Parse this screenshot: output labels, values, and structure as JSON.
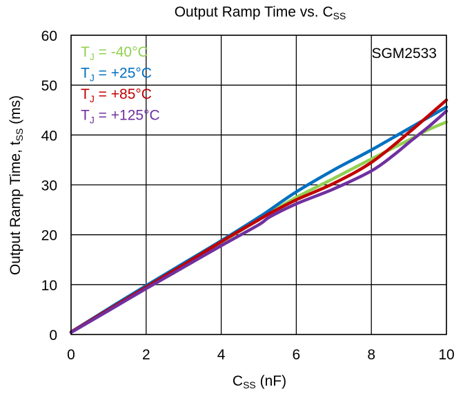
{
  "chart_data": {
    "type": "line",
    "title_main": "Output Ramp Time vs. C",
    "title_sub": "SS",
    "xlabel_main": "C",
    "xlabel_sub": "SS",
    "xlabel_unit": " (nF)",
    "ylabel_main": "Output Ramp Time, t",
    "ylabel_sub": "SS",
    "ylabel_unit": " (ms)",
    "device_label": "SGM2533",
    "xlim": [
      0,
      10
    ],
    "ylim": [
      0,
      60
    ],
    "x_ticks": [
      "0",
      "2",
      "4",
      "6",
      "8",
      "10"
    ],
    "y_ticks": [
      "0",
      "10",
      "20",
      "30",
      "40",
      "50",
      "60"
    ],
    "grid": true,
    "legend_position": "top-left",
    "series": [
      {
        "name": "TJ = -40°C",
        "legend_prefix": "T",
        "legend_sub": "J",
        "legend_suffix": " = -40°C",
        "color": "#92d050",
        "x": [
          0,
          1,
          2,
          3,
          4,
          5,
          5.3,
          6,
          7,
          8,
          9,
          9.5,
          10
        ],
        "y": [
          0.5,
          5,
          9.5,
          14,
          18.5,
          23,
          24.4,
          27.5,
          31.3,
          35.2,
          39,
          41,
          42.6
        ]
      },
      {
        "name": "TJ = +25°C",
        "legend_prefix": "T",
        "legend_sub": "J",
        "legend_suffix": " = +25°C",
        "color": "#0070c0",
        "x": [
          0,
          1,
          2,
          3,
          4,
          5,
          5.3,
          6,
          7,
          8,
          9,
          10
        ],
        "y": [
          0.5,
          5.2,
          9.8,
          14.3,
          18.8,
          23.5,
          25,
          28.6,
          33,
          37,
          41.3,
          45.6
        ]
      },
      {
        "name": "TJ = +85°C",
        "legend_prefix": "T",
        "legend_sub": "J",
        "legend_suffix": " = +85°C",
        "color": "#c00000",
        "x": [
          0,
          1,
          2,
          3,
          4,
          5,
          5.3,
          6,
          7,
          8,
          9,
          10
        ],
        "y": [
          0.5,
          5,
          9.5,
          14,
          18.6,
          23,
          24.3,
          27,
          30.3,
          34.5,
          40.5,
          47
        ]
      },
      {
        "name": "TJ = +125°C",
        "legend_prefix": "T",
        "legend_sub": "J",
        "legend_suffix": " = +125°C",
        "color": "#7030a0",
        "x": [
          0,
          1,
          2,
          3,
          4,
          5,
          5.3,
          6,
          7,
          8,
          8.6,
          9,
          9.5,
          10
        ],
        "y": [
          0.4,
          4.8,
          9.2,
          13.5,
          17.8,
          22,
          23.6,
          26.2,
          29.2,
          32.8,
          36,
          38.5,
          41.5,
          44.8
        ]
      }
    ]
  }
}
